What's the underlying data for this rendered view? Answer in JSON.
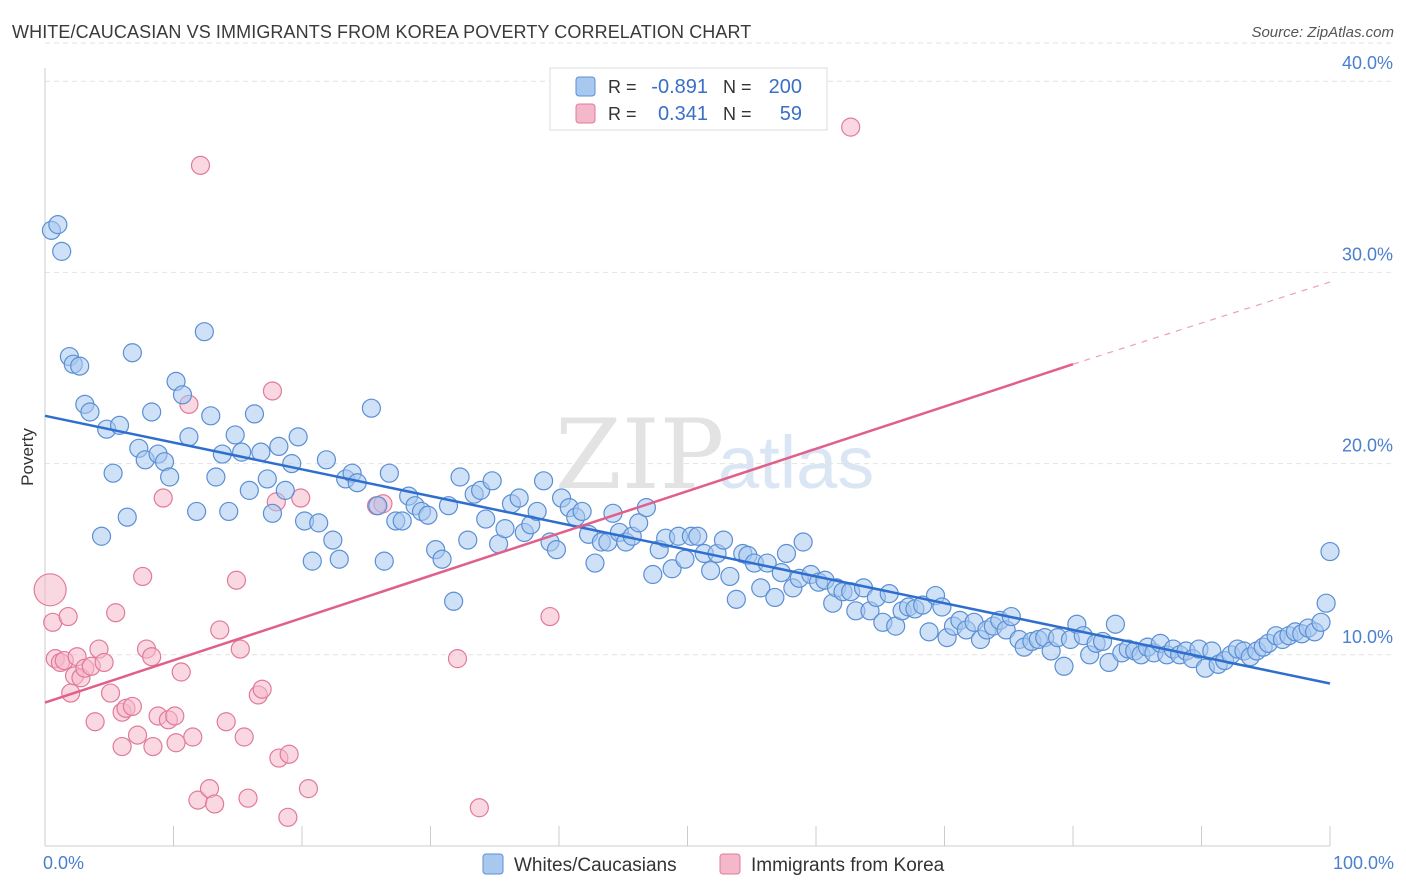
{
  "title": "WHITE/CAUCASIAN VS IMMIGRANTS FROM KOREA POVERTY CORRELATION CHART",
  "source": "Source: ZipAtlas.com",
  "watermark": {
    "part1": "ZIP",
    "part2": "atlas"
  },
  "legend": {
    "r_label": "R =",
    "n_label": "N =",
    "rows": [
      {
        "r": "-0.891",
        "n": "200",
        "color": "#a8c8f0"
      },
      {
        "r": "0.341",
        "n": "59",
        "color": "#f5b8cb"
      }
    ]
  },
  "bottom_legend": [
    "Whites/Caucasians",
    "Immigrants from Korea"
  ],
  "colors": {
    "blue_fill": "#a8c8f0",
    "blue_stroke": "#5b8fd4",
    "blue_line": "#2e6fce",
    "pink_fill": "#f5b8cb",
    "pink_stroke": "#e07a9c",
    "pink_line": "#e0608a",
    "tick_label": "#4a7fd0"
  },
  "chart_data": {
    "type": "scatter",
    "xlabel": "",
    "ylabel": "Poverty",
    "xlim": [
      0,
      100
    ],
    "ylim": [
      0,
      42
    ],
    "x_tick_labels": {
      "0": "0.0%",
      "100": "100.0%"
    },
    "y_ticks": [
      10,
      20,
      30,
      40
    ],
    "y_tick_labels": [
      "10.0%",
      "20.0%",
      "30.0%",
      "40.0%"
    ],
    "series": [
      {
        "name": "Whites/Caucasians",
        "R": -0.891,
        "N": 200,
        "trend": {
          "x0": 0,
          "y0": 22.5,
          "x1": 100,
          "y1": 8.5
        },
        "points": [
          [
            0.5,
            32.2
          ],
          [
            1,
            32.5
          ],
          [
            1.3,
            31.1
          ],
          [
            1.9,
            25.6
          ],
          [
            2.2,
            25.2
          ],
          [
            2.7,
            25.1
          ],
          [
            3.1,
            23.1
          ],
          [
            3.5,
            22.7
          ],
          [
            4.4,
            16.2
          ],
          [
            4.8,
            21.8
          ],
          [
            5.3,
            19.5
          ],
          [
            5.8,
            22
          ],
          [
            6.4,
            17.2
          ],
          [
            6.8,
            25.8
          ],
          [
            7.3,
            20.8
          ],
          [
            7.8,
            20.2
          ],
          [
            8.3,
            22.7
          ],
          [
            8.8,
            20.5
          ],
          [
            9.3,
            20.1
          ],
          [
            9.7,
            19.3
          ],
          [
            10.2,
            24.3
          ],
          [
            10.7,
            23.6
          ],
          [
            11.2,
            21.4
          ],
          [
            11.8,
            17.5
          ],
          [
            12.4,
            26.9
          ],
          [
            12.9,
            22.5
          ],
          [
            13.3,
            19.3
          ],
          [
            13.8,
            20.5
          ],
          [
            14.3,
            17.5
          ],
          [
            14.8,
            21.5
          ],
          [
            15.3,
            20.6
          ],
          [
            15.9,
            18.6
          ],
          [
            16.3,
            22.6
          ],
          [
            16.8,
            20.6
          ],
          [
            17.3,
            19.2
          ],
          [
            17.7,
            17.4
          ],
          [
            18.2,
            20.9
          ],
          [
            18.7,
            18.6
          ],
          [
            19.2,
            20
          ],
          [
            19.7,
            21.4
          ],
          [
            20.2,
            17
          ],
          [
            20.8,
            14.9
          ],
          [
            21.3,
            16.9
          ],
          [
            21.9,
            20.2
          ],
          [
            22.4,
            16
          ],
          [
            22.9,
            15
          ],
          [
            23.4,
            19.2
          ],
          [
            23.9,
            19.5
          ],
          [
            24.3,
            19
          ],
          [
            25.4,
            22.9
          ],
          [
            25.9,
            17.8
          ],
          [
            26.4,
            14.9
          ],
          [
            26.8,
            19.5
          ],
          [
            27.3,
            17
          ],
          [
            27.8,
            17
          ],
          [
            28.3,
            18.3
          ],
          [
            28.8,
            17.8
          ],
          [
            29.3,
            17.5
          ],
          [
            29.8,
            17.3
          ],
          [
            30.4,
            15.5
          ],
          [
            30.9,
            15
          ],
          [
            31.4,
            17.8
          ],
          [
            31.8,
            12.8
          ],
          [
            32.3,
            19.3
          ],
          [
            32.9,
            16
          ],
          [
            33.4,
            18.4
          ],
          [
            33.9,
            18.6
          ],
          [
            34.3,
            17.1
          ],
          [
            34.8,
            19.1
          ],
          [
            35.3,
            15.8
          ],
          [
            35.8,
            16.6
          ],
          [
            36.3,
            17.9
          ],
          [
            36.9,
            18.2
          ],
          [
            37.3,
            16.4
          ],
          [
            37.8,
            16.8
          ],
          [
            38.3,
            17.5
          ],
          [
            38.8,
            19.1
          ],
          [
            39.3,
            15.9
          ],
          [
            39.8,
            15.5
          ],
          [
            40.2,
            18.2
          ],
          [
            40.8,
            17.7
          ],
          [
            41.3,
            17.2
          ],
          [
            41.8,
            17.5
          ],
          [
            42.3,
            16.3
          ],
          [
            42.8,
            14.8
          ],
          [
            43.3,
            15.9
          ],
          [
            43.8,
            15.9
          ],
          [
            44.2,
            17.4
          ],
          [
            44.7,
            16.4
          ],
          [
            45.2,
            15.9
          ],
          [
            45.7,
            16.2
          ],
          [
            46.2,
            16.9
          ],
          [
            46.8,
            17.7
          ],
          [
            47.3,
            14.2
          ],
          [
            47.8,
            15.5
          ],
          [
            48.3,
            16.1
          ],
          [
            48.8,
            14.5
          ],
          [
            49.3,
            16.2
          ],
          [
            49.8,
            15
          ],
          [
            50.3,
            16.2
          ],
          [
            50.8,
            16.2
          ],
          [
            51.3,
            15.3
          ],
          [
            51.8,
            14.4
          ],
          [
            52.3,
            15.3
          ],
          [
            52.8,
            16
          ],
          [
            53.3,
            14.1
          ],
          [
            53.8,
            12.9
          ],
          [
            54.3,
            15.3
          ],
          [
            54.7,
            15.2
          ],
          [
            55.2,
            14.8
          ],
          [
            55.7,
            13.5
          ],
          [
            56.2,
            14.8
          ],
          [
            56.8,
            13
          ],
          [
            57.3,
            14.3
          ],
          [
            57.7,
            15.3
          ],
          [
            58.2,
            13.5
          ],
          [
            58.7,
            14
          ],
          [
            59,
            15.9
          ],
          [
            59.6,
            14.2
          ],
          [
            60.2,
            13.8
          ],
          [
            60.7,
            13.9
          ],
          [
            61.3,
            12.7
          ],
          [
            61.6,
            13.5
          ],
          [
            62.1,
            13.3
          ],
          [
            62.7,
            13.3
          ],
          [
            63.1,
            12.3
          ],
          [
            63.7,
            13.5
          ],
          [
            64.2,
            12.3
          ],
          [
            64.7,
            13
          ],
          [
            65.2,
            11.7
          ],
          [
            65.7,
            13.2
          ],
          [
            66.2,
            11.5
          ],
          [
            66.7,
            12.3
          ],
          [
            67.2,
            12.5
          ],
          [
            67.7,
            12.4
          ],
          [
            68.3,
            12.6
          ],
          [
            68.8,
            11.2
          ],
          [
            69.3,
            13.1
          ],
          [
            69.8,
            12.5
          ],
          [
            70.2,
            10.9
          ],
          [
            70.7,
            11.5
          ],
          [
            71.2,
            11.8
          ],
          [
            71.7,
            11.3
          ],
          [
            72.3,
            11.7
          ],
          [
            72.8,
            10.8
          ],
          [
            73.3,
            11.3
          ],
          [
            73.8,
            11.5
          ],
          [
            74.3,
            11.8
          ],
          [
            74.8,
            11.3
          ],
          [
            75.2,
            12
          ],
          [
            75.8,
            10.8
          ],
          [
            76.2,
            10.4
          ],
          [
            76.8,
            10.7
          ],
          [
            77.3,
            10.8
          ],
          [
            77.8,
            10.9
          ],
          [
            78.3,
            10.2
          ],
          [
            78.8,
            10.9
          ],
          [
            79.3,
            9.4
          ],
          [
            79.8,
            10.8
          ],
          [
            80.3,
            11.6
          ],
          [
            80.8,
            11
          ],
          [
            81.3,
            10
          ],
          [
            81.8,
            10.6
          ],
          [
            82.3,
            10.7
          ],
          [
            82.8,
            9.6
          ],
          [
            83.3,
            11.6
          ],
          [
            83.8,
            10.1
          ],
          [
            84.3,
            10.3
          ],
          [
            84.8,
            10.2
          ],
          [
            85.3,
            10
          ],
          [
            85.8,
            10.4
          ],
          [
            86.3,
            10.1
          ],
          [
            86.8,
            10.6
          ],
          [
            87.3,
            10
          ],
          [
            87.8,
            10.3
          ],
          [
            88.3,
            10
          ],
          [
            88.8,
            10.2
          ],
          [
            89.3,
            9.8
          ],
          [
            89.8,
            10.3
          ],
          [
            90.3,
            9.3
          ],
          [
            90.8,
            10.2
          ],
          [
            91.3,
            9.5
          ],
          [
            91.8,
            9.7
          ],
          [
            92.3,
            10
          ],
          [
            92.8,
            10.3
          ],
          [
            93.3,
            10.2
          ],
          [
            93.8,
            9.9
          ],
          [
            94.3,
            10.2
          ],
          [
            94.8,
            10.4
          ],
          [
            95.2,
            10.6
          ],
          [
            95.8,
            11
          ],
          [
            96.3,
            10.8
          ],
          [
            96.8,
            11
          ],
          [
            97.3,
            11.2
          ],
          [
            97.8,
            11.1
          ],
          [
            98.3,
            11.4
          ],
          [
            98.8,
            11.2
          ],
          [
            99.3,
            11.7
          ],
          [
            99.7,
            12.7
          ],
          [
            100,
            15.4
          ]
        ]
      },
      {
        "name": "Immigrants from Korea",
        "R": 0.341,
        "N": 59,
        "trend": {
          "x0": 0,
          "y0": 7.5,
          "x1": 80,
          "y1": 25.2
        },
        "trend_dashed_to": {
          "x": 100,
          "y": 29.5
        },
        "points": [
          [
            0.4,
            13.4,
            "L"
          ],
          [
            0.6,
            11.7
          ],
          [
            0.8,
            9.8
          ],
          [
            1.2,
            9.6
          ],
          [
            1.5,
            9.7
          ],
          [
            1.8,
            12
          ],
          [
            2,
            8
          ],
          [
            2.3,
            8.9
          ],
          [
            2.5,
            9.9
          ],
          [
            2.8,
            8.8
          ],
          [
            3.1,
            9.3
          ],
          [
            3.6,
            9.4
          ],
          [
            3.9,
            6.5
          ],
          [
            4.2,
            10.3
          ],
          [
            4.6,
            9.6
          ],
          [
            5.1,
            8
          ],
          [
            5.5,
            12.2
          ],
          [
            6,
            7
          ],
          [
            6.3,
            7.2
          ],
          [
            6.8,
            7.3
          ],
          [
            7.2,
            5.8
          ],
          [
            7.6,
            14.1
          ],
          [
            7.9,
            10.3
          ],
          [
            8.3,
            9.9
          ],
          [
            8.8,
            6.8
          ],
          [
            9.2,
            18.2
          ],
          [
            9.6,
            6.6
          ],
          [
            10.1,
            6.8
          ],
          [
            10.6,
            9.1
          ],
          [
            11.2,
            23.1
          ],
          [
            11.5,
            5.7
          ],
          [
            11.9,
            2.4
          ],
          [
            12.1,
            35.6
          ],
          [
            12.8,
            3
          ],
          [
            13.2,
            2.2
          ],
          [
            13.6,
            11.3
          ],
          [
            14.1,
            6.5
          ],
          [
            14.9,
            13.9
          ],
          [
            15.2,
            10.3
          ],
          [
            15.5,
            5.7
          ],
          [
            15.8,
            2.5
          ],
          [
            16.6,
            7.9
          ],
          [
            16.9,
            8.2
          ],
          [
            17.7,
            23.8
          ],
          [
            18.2,
            4.6
          ],
          [
            18.9,
            1.5
          ],
          [
            19,
            4.8
          ],
          [
            19.9,
            18.2
          ],
          [
            20.5,
            3
          ],
          [
            25.8,
            17.8
          ],
          [
            26.3,
            17.9
          ],
          [
            32.1,
            9.8
          ],
          [
            33.8,
            2
          ],
          [
            39.3,
            12
          ],
          [
            62.7,
            37.6
          ],
          [
            18,
            18
          ],
          [
            8.4,
            5.2
          ],
          [
            6,
            5.2
          ],
          [
            10.2,
            5.4
          ]
        ]
      }
    ]
  }
}
